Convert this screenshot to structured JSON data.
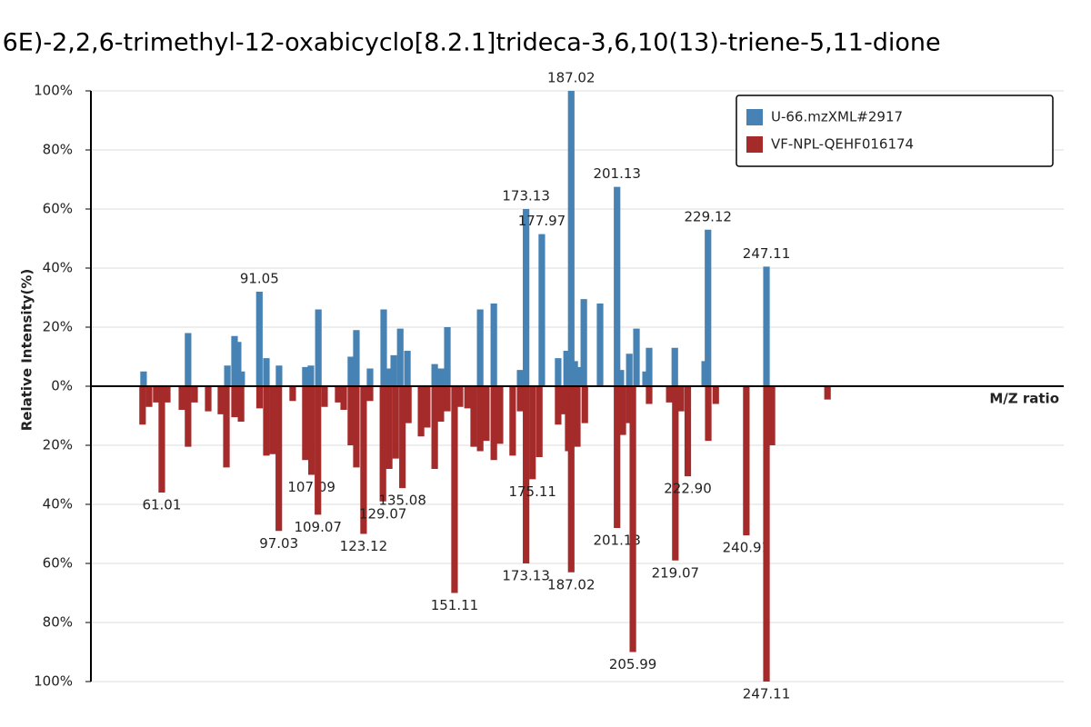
{
  "chart_data": {
    "type": "mirror-bar",
    "title": ",6E)-2,2,6-trimethyl-12-oxabicyclo[8.2.1]trideca-3,6,10(13)-triene-5,11-dione",
    "x_label": "M/Z ratio",
    "y_label": "Relative Intensity(%)",
    "xlim": [
      39.2,
      338.6
    ],
    "ylim": [
      0,
      100
    ],
    "yticks": [
      {
        "value": 0,
        "label": "0%"
      },
      {
        "value": 20,
        "label": "20%"
      },
      {
        "value": 40,
        "label": "40%"
      },
      {
        "value": 60,
        "label": "60%"
      },
      {
        "value": 80,
        "label": "80%"
      },
      {
        "value": 100,
        "label": "100%"
      }
    ],
    "mirror": true,
    "grid": true,
    "legend": "top-right",
    "series": [
      {
        "name": "U-66.mzXML#2917",
        "color": "#4682b4",
        "direction": "up",
        "x": [
          55.4,
          69.1,
          81.2,
          83.4,
          84.5,
          85.6,
          91.05,
          93.2,
          97.1,
          105.2,
          106.9,
          109.2,
          119.2,
          120.9,
          125.1,
          129.3,
          131.0,
          132.4,
          134.4,
          136.6,
          145.0,
          146.9,
          148.9,
          159.0,
          163.2,
          171.3,
          173.13,
          177.97,
          183.0,
          185.6,
          187.02,
          188.1,
          189.2,
          190.9,
          195.9,
          201.13,
          202.3,
          204.9,
          207.1,
          209.9,
          211.0,
          218.9,
          228.1,
          229.12,
          247.11
        ],
        "values": [
          5,
          18,
          7,
          17,
          15,
          5,
          32,
          9.5,
          7,
          6.5,
          7,
          26,
          10,
          19,
          6,
          26,
          6,
          10.5,
          19.5,
          12,
          7.5,
          6,
          20,
          26,
          28,
          5.5,
          60,
          51.5,
          9.5,
          12,
          100,
          8.5,
          6.5,
          29.5,
          28,
          67.5,
          5.5,
          11,
          19.5,
          5,
          13,
          13,
          8.5,
          53,
          40.5
        ],
        "labels": [
          null,
          null,
          null,
          null,
          null,
          null,
          "91.05",
          null,
          null,
          null,
          null,
          null,
          null,
          null,
          null,
          null,
          null,
          null,
          null,
          null,
          null,
          null,
          null,
          null,
          null,
          null,
          "173.13",
          "177.97",
          null,
          null,
          "187.02",
          null,
          null,
          null,
          null,
          "201.13",
          null,
          null,
          null,
          null,
          null,
          null,
          null,
          "229.12",
          "247.11"
        ]
      },
      {
        "name": "VF-NPL-QEHF016174",
        "color": "#a52a2a",
        "direction": "down",
        "x": [
          55.1,
          57.1,
          59.3,
          61.01,
          62.7,
          67.2,
          69.1,
          71.1,
          75.3,
          79.2,
          80.9,
          83.4,
          85.4,
          91.1,
          93.2,
          95.2,
          97.03,
          101.3,
          105.2,
          107.09,
          109.07,
          111.1,
          115.3,
          117.0,
          119.2,
          120.9,
          123.12,
          125.1,
          129.07,
          131.0,
          133.0,
          135.08,
          136.9,
          140.8,
          142.7,
          145.0,
          146.9,
          148.9,
          151.11,
          152.8,
          155.1,
          157.0,
          159.0,
          160.9,
          163.2,
          165.1,
          169.0,
          171.3,
          173.13,
          175.11,
          177.2,
          183.0,
          185.0,
          186.1,
          187.02,
          188.9,
          191.2,
          201.13,
          202.9,
          204.9,
          205.99,
          211.0,
          217.2,
          219.07,
          220.8,
          222.9,
          229.2,
          231.5,
          240.91,
          247.11,
          248.8,
          265.9
        ],
        "values": [
          13,
          7,
          5.5,
          36,
          5.5,
          8,
          20.5,
          5.5,
          8.5,
          9.5,
          27.5,
          10.5,
          12,
          7.5,
          23.5,
          23,
          49,
          5,
          25,
          30,
          43.5,
          7,
          5.5,
          8,
          20,
          27.5,
          50,
          5,
          39,
          28,
          24.5,
          34.5,
          12.5,
          17,
          14,
          28,
          12,
          8.5,
          70,
          7,
          7.5,
          20.5,
          22,
          18.5,
          25,
          19.5,
          23.5,
          8.5,
          60,
          31.5,
          24,
          13,
          9.5,
          22,
          63,
          20.5,
          12.5,
          48,
          16.5,
          12.5,
          90,
          6,
          5.5,
          59,
          8.5,
          30.5,
          18.5,
          6,
          50.5,
          100,
          20,
          4.5
        ],
        "labels": [
          null,
          null,
          null,
          "61.01",
          null,
          null,
          null,
          null,
          null,
          null,
          null,
          null,
          null,
          null,
          null,
          null,
          "97.03",
          null,
          null,
          "107.09",
          "109.07",
          null,
          null,
          null,
          null,
          null,
          "123.12",
          null,
          "129.07",
          null,
          null,
          "135.08",
          null,
          null,
          null,
          null,
          null,
          null,
          "151.11",
          null,
          null,
          null,
          null,
          null,
          null,
          null,
          null,
          null,
          "173.13",
          "175.11",
          null,
          null,
          null,
          null,
          "187.02",
          null,
          null,
          "201.13",
          null,
          null,
          "205.99",
          null,
          null,
          "219.07",
          null,
          "222.90",
          null,
          null,
          "240.91",
          "247.11",
          null,
          null
        ]
      }
    ]
  }
}
